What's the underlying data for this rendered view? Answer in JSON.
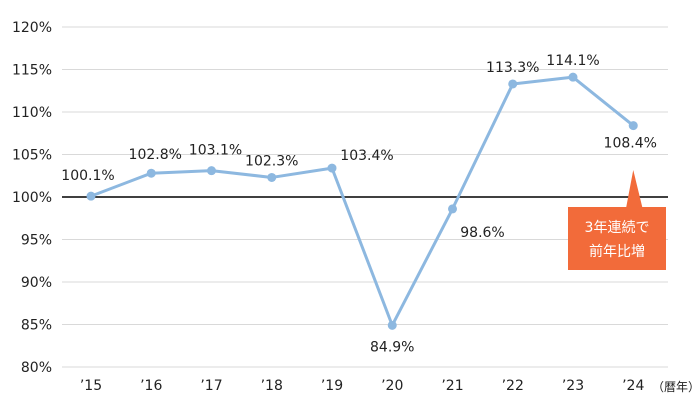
{
  "chart_data": {
    "type": "line",
    "categories": [
      "’15",
      "’16",
      "’17",
      "’18",
      "’19",
      "’20",
      "’21",
      "’22",
      "’23",
      "’24"
    ],
    "values": [
      100.1,
      102.8,
      103.1,
      102.3,
      103.4,
      84.9,
      98.6,
      113.3,
      114.1,
      108.4
    ],
    "value_labels": [
      "100.1%",
      "102.8%",
      "103.1%",
      "102.3%",
      "103.4%",
      "84.9%",
      "98.6%",
      "113.3%",
      "114.1%",
      "108.4%"
    ],
    "ylim": [
      80,
      120
    ],
    "yticks": [
      80,
      85,
      90,
      95,
      100,
      105,
      110,
      115,
      120
    ],
    "ytick_labels": [
      "80%",
      "85%",
      "90%",
      "95%",
      "100%",
      "105%",
      "110%",
      "115%",
      "120%"
    ],
    "reference_line": 100,
    "grid": true,
    "x_unit_label": "（暦年）",
    "annotation": {
      "lines": [
        "3年連続で",
        "前年比増"
      ],
      "points_to": "’24"
    },
    "colors": {
      "line": "#8db8e0",
      "marker": "#8db8e0",
      "grid": "#d9d9d9",
      "reference": "#000000",
      "callout": "#f26b3a"
    }
  }
}
